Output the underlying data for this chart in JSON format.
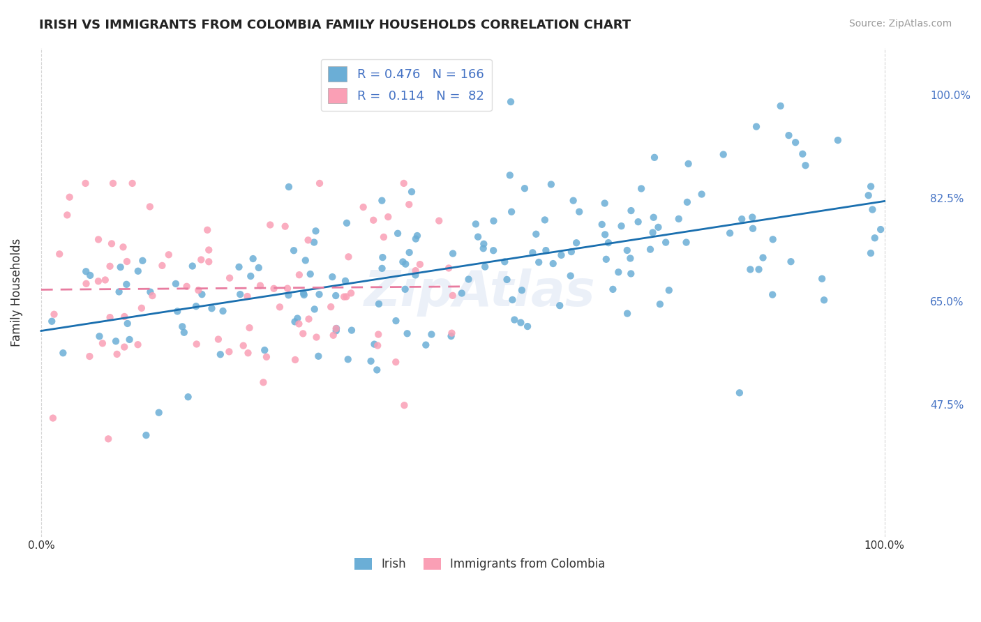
{
  "title": "IRISH VS IMMIGRANTS FROM COLOMBIA FAMILY HOUSEHOLDS CORRELATION CHART",
  "source": "Source: ZipAtlas.com",
  "ylabel": "Family Households",
  "ytick_labels": [
    "47.5%",
    "65.0%",
    "82.5%",
    "100.0%"
  ],
  "ytick_values": [
    0.475,
    0.65,
    0.825,
    1.0
  ],
  "R_blue": 0.476,
  "N_blue": 166,
  "R_pink": 0.114,
  "N_pink": 82,
  "color_blue": "#6baed6",
  "color_pink": "#fa9fb5",
  "line_blue": "#1a6faf",
  "line_pink": "#e87ca0",
  "watermark": "ZipAtlas"
}
